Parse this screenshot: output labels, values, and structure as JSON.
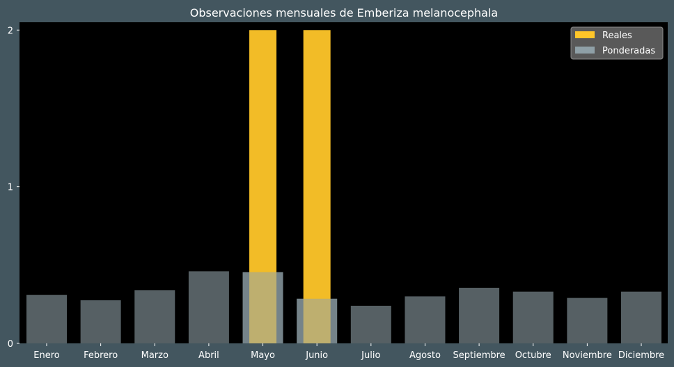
{
  "colors": {
    "figure_background": "#43565f",
    "plot_background": "#000000",
    "reales": "#ffc629",
    "ponderadas": "#8fa0a7",
    "legend_background": "#595959",
    "text": "#ffffff"
  },
  "chart_data": {
    "type": "bar",
    "title": "Observaciones mensuales de Emberiza melanocephala",
    "xlabel": "",
    "ylabel": "",
    "categories": [
      "Enero",
      "Febrero",
      "Marzo",
      "Abril",
      "Mayo",
      "Junio",
      "Julio",
      "Agosto",
      "Septiembre",
      "Octubre",
      "Noviembre",
      "Diciembre"
    ],
    "series": [
      {
        "name": "Reales",
        "color": "#ffc629",
        "values": [
          0,
          0,
          0,
          0,
          2,
          2,
          0,
          0,
          0,
          0,
          0,
          0
        ]
      },
      {
        "name": "Ponderadas",
        "color": "#8fa0a7",
        "values": [
          0.31,
          0.275,
          0.34,
          0.46,
          0.455,
          0.285,
          0.24,
          0.3,
          0.355,
          0.33,
          0.29,
          0.33
        ]
      }
    ],
    "ylim": [
      0,
      2.05
    ],
    "yticks": [
      0,
      1,
      2
    ],
    "grid": false,
    "legend_position": "top-right"
  }
}
